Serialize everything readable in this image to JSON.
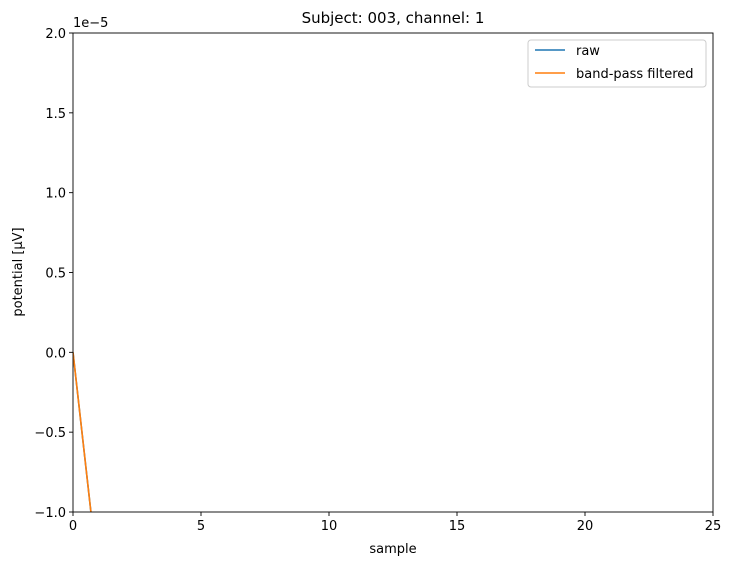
{
  "chart_data": {
    "type": "line",
    "title": "Subject: 003, channel: 1",
    "xlabel": "sample",
    "ylabel": "potential [µV]",
    "offset_label": "1e−5",
    "xlim": [
      0,
      25
    ],
    "ylim": [
      -1.0,
      2.0
    ],
    "xticks": [
      0,
      5,
      10,
      15,
      20,
      25
    ],
    "xtick_labels": [
      "0",
      "5",
      "10",
      "15",
      "20",
      "25"
    ],
    "yticks": [
      -1.0,
      -0.5,
      0.0,
      0.5,
      1.0,
      1.5,
      2.0
    ],
    "ytick_labels": [
      "−1.0",
      "−0.5",
      "0.0",
      "0.5",
      "1.0",
      "1.5",
      "2.0"
    ],
    "grid": false,
    "legend_position": "top-right",
    "series": [
      {
        "name": "raw",
        "color": "#1f77b4",
        "x": [
          0,
          0.7
        ],
        "y": [
          0.0,
          -1.0
        ]
      },
      {
        "name": "band-pass filtered",
        "color": "#ff7f0e",
        "x": [
          0,
          0.7
        ],
        "y": [
          0.0,
          -1.0
        ]
      }
    ]
  }
}
